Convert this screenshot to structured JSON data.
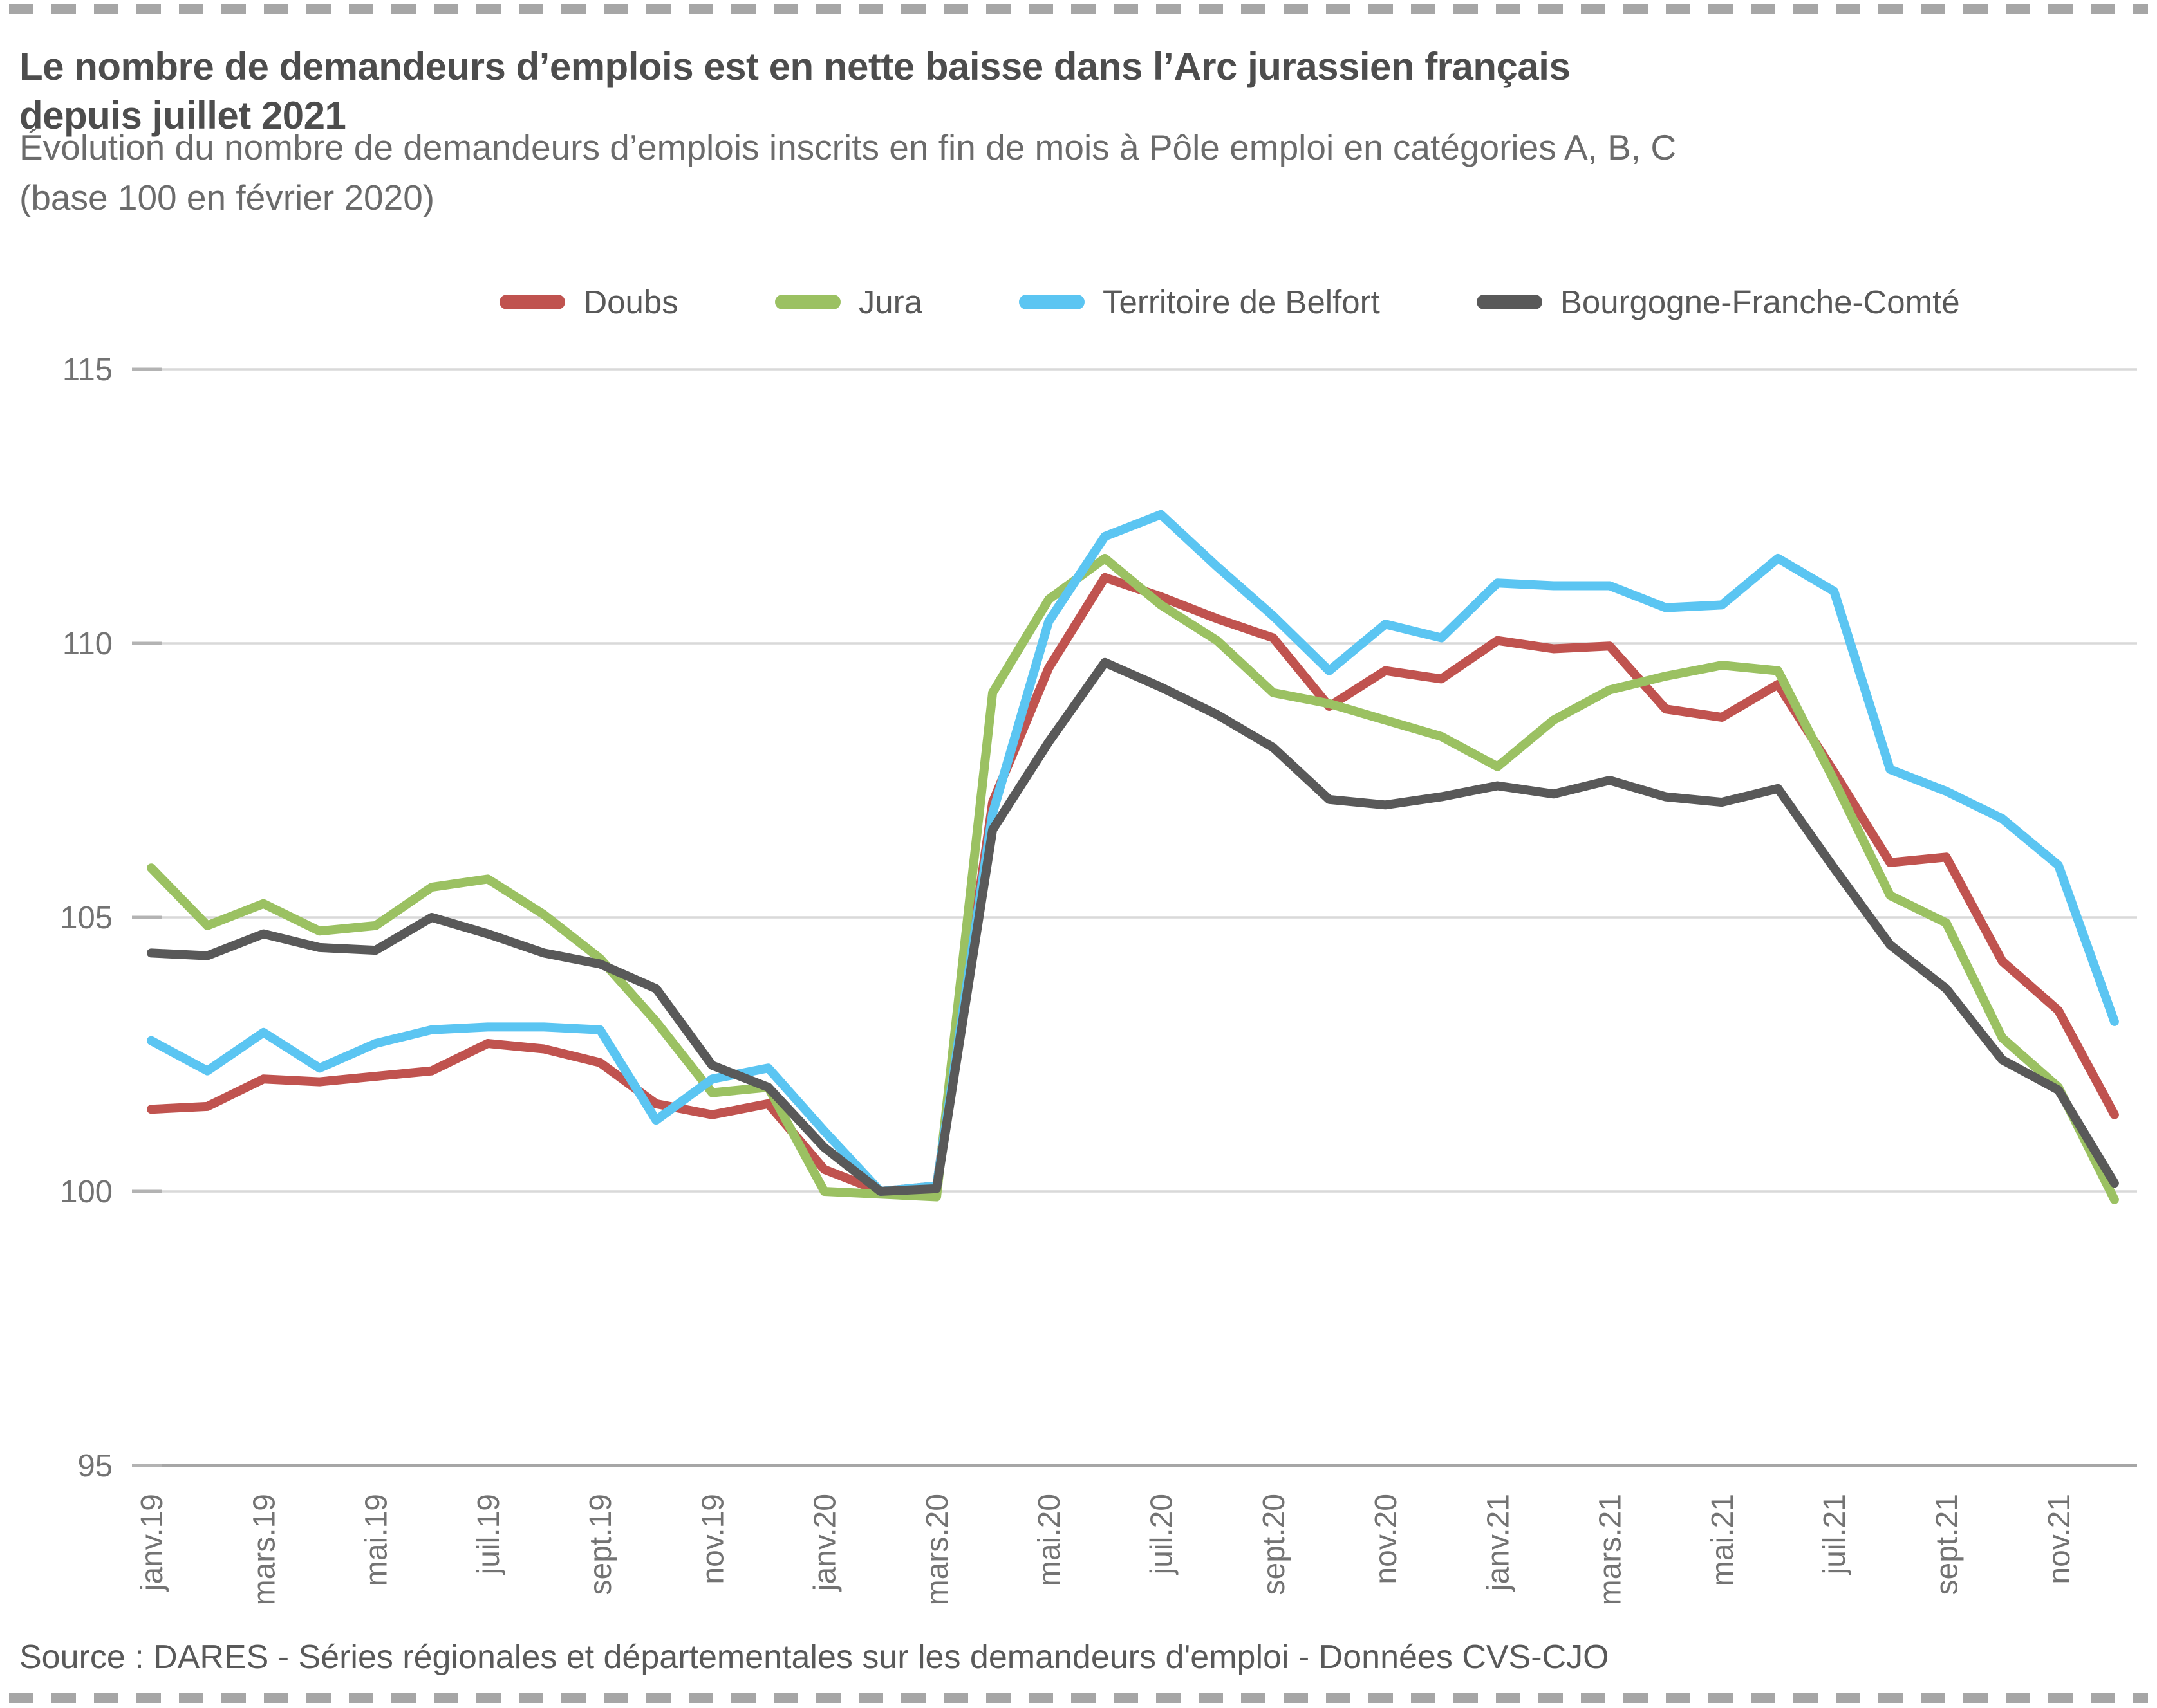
{
  "header": {
    "title_line1": "Le nombre de demandeurs d’emplois est en nette baisse dans l’Arc jurassien français",
    "title_line2": "depuis juillet 2021",
    "subtitle_line1": "Évolution du nombre de demandeurs d’emplois inscrits en fin de mois à Pôle emploi en catégories A, B, C",
    "subtitle_line2": "(base 100 en février 2020)"
  },
  "footer": {
    "source": "Source : DARES - Séries régionales et départementales sur les demandeurs d'emploi - Données CVS-CJO"
  },
  "chart_data": {
    "type": "line",
    "title": "Le nombre de demandeurs d’emplois est en nette baisse dans l’Arc jurassien français depuis juillet 2021",
    "subtitle": "Évolution du nombre de demandeurs d’emplois inscrits en fin de mois à Pôle emploi en catégories A, B, C (base 100 en février 2020)",
    "grid": true,
    "legend_position": "top",
    "ylim": [
      95,
      115
    ],
    "yticks": [
      95,
      100,
      105,
      110,
      115
    ],
    "x_label_every": 2,
    "x": [
      "janv.19",
      "févr.19",
      "mars.19",
      "avr.19",
      "mai.19",
      "juin.19",
      "juil.19",
      "août.19",
      "sept.19",
      "oct.19",
      "nov.19",
      "déc.19",
      "janv.20",
      "févr.20",
      "mars.20",
      "avr.20",
      "mai.20",
      "juin.20",
      "juil.20",
      "août.20",
      "sept.20",
      "oct.20",
      "nov.20",
      "déc.20",
      "janv.21",
      "févr.21",
      "mars.21",
      "avr.21",
      "mai.21",
      "juin.21",
      "juil.21",
      "août.21",
      "sept.21",
      "oct.21",
      "nov.21",
      "déc.21"
    ],
    "series": [
      {
        "name": "Doubs",
        "color": "#c0534f",
        "values": [
          101.5,
          101.55,
          102.05,
          102.0,
          102.1,
          102.2,
          102.7,
          102.6,
          102.35,
          101.6,
          101.4,
          101.6,
          100.4,
          100.0,
          100.1,
          107.1,
          109.55,
          111.2,
          110.85,
          110.45,
          110.1,
          108.85,
          109.5,
          109.35,
          110.05,
          109.9,
          109.95,
          108.8,
          108.65,
          109.25,
          107.65,
          106.0,
          106.1,
          104.2,
          103.3,
          101.4
        ]
      },
      {
        "name": "Jura",
        "color": "#9bc162",
        "values": [
          105.9,
          104.85,
          105.25,
          104.75,
          104.85,
          105.55,
          105.7,
          105.05,
          104.25,
          103.1,
          101.8,
          101.9,
          100.0,
          99.95,
          99.9,
          109.1,
          110.8,
          111.55,
          110.7,
          110.05,
          109.1,
          108.9,
          108.6,
          108.3,
          107.75,
          108.6,
          109.15,
          109.4,
          109.6,
          109.5,
          107.5,
          105.4,
          104.9,
          102.8,
          101.9,
          99.85
        ]
      },
      {
        "name": "Territoire de Belfort",
        "color": "#5bc5f2",
        "values": [
          102.75,
          102.2,
          102.9,
          102.25,
          102.7,
          102.95,
          103.0,
          103.0,
          102.95,
          101.3,
          102.05,
          102.25,
          101.1,
          100.0,
          100.1,
          106.9,
          110.4,
          111.95,
          112.35,
          111.4,
          110.5,
          109.5,
          110.35,
          110.1,
          111.1,
          111.05,
          111.05,
          110.65,
          110.7,
          111.55,
          110.95,
          107.7,
          107.3,
          106.8,
          105.95,
          103.1
        ]
      },
      {
        "name": "Bourgogne-Franche-Comté",
        "color": "#595959",
        "values": [
          104.35,
          104.3,
          104.7,
          104.45,
          104.4,
          105.0,
          104.7,
          104.35,
          104.15,
          103.7,
          102.3,
          101.9,
          100.8,
          100.0,
          100.05,
          106.6,
          108.2,
          109.65,
          109.2,
          108.7,
          108.1,
          107.15,
          107.05,
          107.2,
          107.4,
          107.25,
          107.5,
          107.2,
          107.1,
          107.35,
          105.9,
          104.5,
          103.7,
          102.4,
          101.85,
          100.15
        ]
      }
    ]
  }
}
